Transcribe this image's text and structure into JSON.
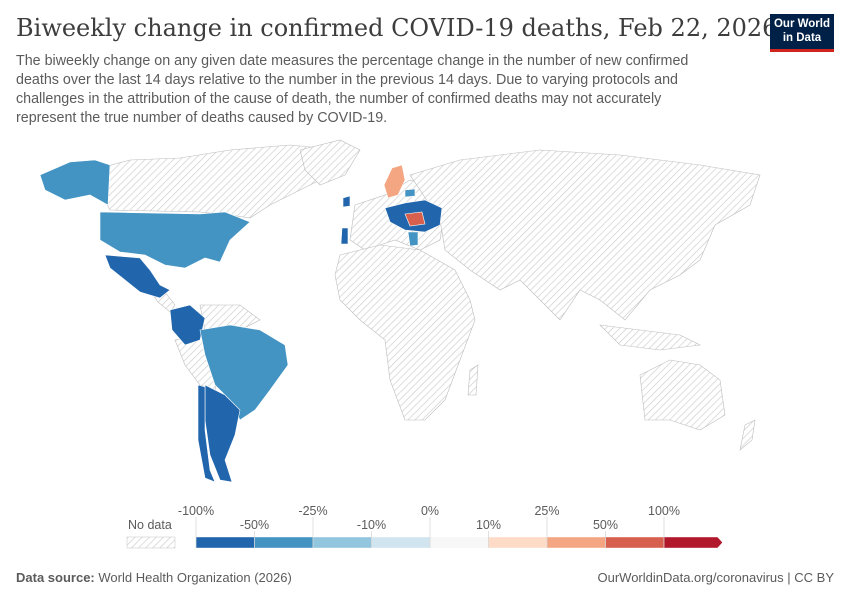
{
  "header": {
    "title": "Biweekly change in confirmed COVID-19 deaths, Feb 22, 2026",
    "subtitle": "The biweekly change on any given date measures the percentage change in the number of new confirmed deaths over the last 14 days relative to the number in the previous 14 days. Due to varying protocols and challenges in the attribution of the cause of death, the number of confirmed deaths may not accurately represent the true number of deaths caused by COVID-19.",
    "logo": "Our World in Data"
  },
  "legend": {
    "no_data_label": "No data",
    "bins": [
      {
        "color": "#2166ac"
      },
      {
        "color": "#4393c3"
      },
      {
        "color": "#92c5de"
      },
      {
        "color": "#d1e5f0"
      },
      {
        "color": "#f7f7f7"
      },
      {
        "color": "#fddbc7"
      },
      {
        "color": "#f4a582"
      },
      {
        "color": "#d6604d"
      },
      {
        "color": "#b2182b"
      }
    ],
    "ticks": [
      "-100%",
      "-50%",
      "-25%",
      "-10%",
      "0%",
      "10%",
      "25%",
      "50%",
      "100%"
    ],
    "no_data_pattern": "hatched-gray"
  },
  "map": {
    "countries": [
      {
        "name": "United States",
        "color": "#4393c3"
      },
      {
        "name": "Mexico",
        "color": "#2166ac"
      },
      {
        "name": "Colombia",
        "color": "#2166ac"
      },
      {
        "name": "Brazil",
        "color": "#4393c3"
      },
      {
        "name": "Argentina",
        "color": "#2166ac"
      },
      {
        "name": "Chile",
        "color": "#2166ac"
      },
      {
        "name": "Sweden",
        "color": "#f4a582"
      },
      {
        "name": "Ireland",
        "color": "#2166ac"
      },
      {
        "name": "Portugal",
        "color": "#2166ac"
      },
      {
        "name": "Central Europe",
        "color": "#2166ac"
      },
      {
        "name": "Romania",
        "color": "#d6604d"
      },
      {
        "name": "Latvia",
        "color": "#4393c3"
      },
      {
        "name": "Greece",
        "color": "#4393c3"
      }
    ]
  },
  "footer": {
    "source_label": "Data source:",
    "source": "World Health Organization (2026)",
    "url": "OurWorldinData.org/coronavirus | CC BY"
  }
}
